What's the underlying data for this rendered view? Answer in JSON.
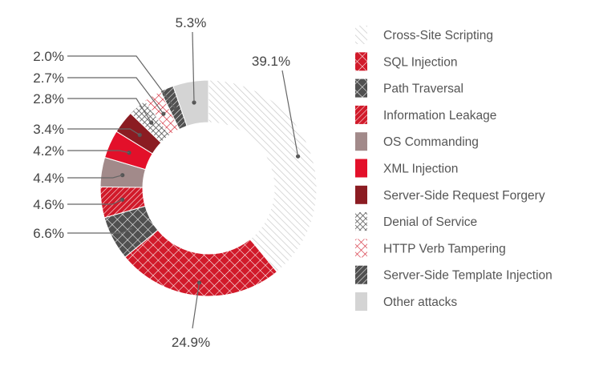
{
  "chart_data": {
    "type": "pie",
    "donut": true,
    "title": "",
    "legend_position": "right",
    "slices": [
      {
        "label": "Cross-Site Scripting",
        "value": 39.1,
        "value_label": "39.1%",
        "pattern": "diag-light",
        "color": "#cfcfcf"
      },
      {
        "label": "SQL Injection",
        "value": 24.9,
        "value_label": "24.9%",
        "pattern": "crosshatch",
        "color": "#d11a2a"
      },
      {
        "label": "Path Traversal",
        "value": 6.6,
        "value_label": "6.6%",
        "pattern": "crosshatch",
        "color": "#505050"
      },
      {
        "label": "Information Leakage",
        "value": 4.6,
        "value_label": "4.6%",
        "pattern": "diag-dense",
        "color": "#d11a2a"
      },
      {
        "label": "OS Commanding",
        "value": 4.4,
        "value_label": "4.4%",
        "pattern": "solid",
        "color": "#a28a8a"
      },
      {
        "label": "XML Injection",
        "value": 4.2,
        "value_label": "4.2%",
        "pattern": "solid",
        "color": "#e3102a"
      },
      {
        "label": "Server-Side Request Forgery",
        "value": 3.4,
        "value_label": "3.4%",
        "pattern": "solid",
        "color": "#8b1c22"
      },
      {
        "label": "Denial of Service",
        "value": 2.8,
        "value_label": "2.8%",
        "pattern": "crosshatch-fine",
        "color": "#505050"
      },
      {
        "label": "HTTP Verb Tampering",
        "value": 2.7,
        "value_label": "2.7%",
        "pattern": "crosshatch-outline",
        "color": "#d11a2a"
      },
      {
        "label": "Server-Side Template Injection",
        "value": 2.0,
        "value_label": "2.0%",
        "pattern": "diag-dense",
        "color": "#505050"
      },
      {
        "label": "Other attacks",
        "value": 5.3,
        "value_label": "5.3%",
        "pattern": "solid",
        "color": "#d4d4d4"
      }
    ]
  }
}
